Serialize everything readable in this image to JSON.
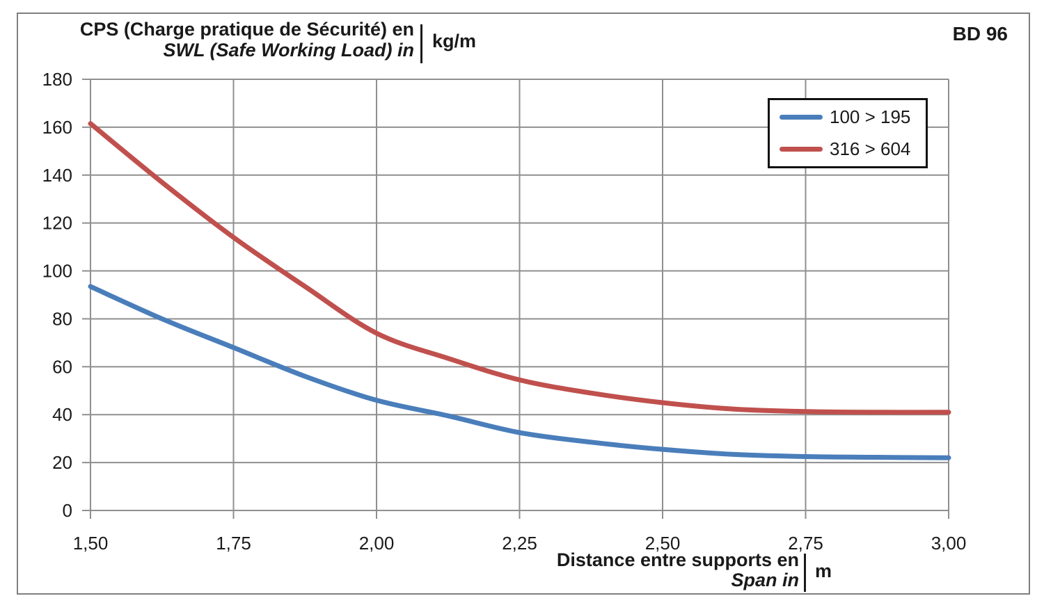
{
  "chart_data": {
    "type": "line",
    "corner_label": "BD 96",
    "ylabel_line1": "CPS (Charge pratique de Sécurité) en",
    "ylabel_line2": "SWL (Safe Working Load) in",
    "ylabel_unit": "kg/m",
    "xlabel_line1": "Distance entre supports en",
    "xlabel_line2": "Span in",
    "xlabel_unit": "m",
    "x_range": [
      1.5,
      3.0
    ],
    "y_range": [
      0,
      180
    ],
    "x_ticks": [
      1.5,
      1.75,
      2.0,
      2.25,
      2.5,
      2.75,
      3.0
    ],
    "x_tick_labels": [
      "1,50",
      "1,75",
      "2,00",
      "2,25",
      "2,50",
      "2,75",
      "3,00"
    ],
    "y_ticks": [
      0,
      20,
      40,
      60,
      80,
      100,
      120,
      140,
      160,
      180
    ],
    "y_tick_labels": [
      "0",
      "20",
      "40",
      "60",
      "80",
      "100",
      "120",
      "140",
      "160",
      "180"
    ],
    "grid": true,
    "grid_color": "#8f8f8f",
    "text_color": "#1a1a1a",
    "legend_position": "top-right",
    "x": [
      1.5,
      1.625,
      1.75,
      1.875,
      2.0,
      2.125,
      2.25,
      2.375,
      2.5,
      2.625,
      2.75,
      2.875,
      3.0
    ],
    "series": [
      {
        "name": "100 > 195",
        "color": "#4a7ebb",
        "values": [
          93.5,
          80,
          68,
          56,
          46,
          39.5,
          32.5,
          28.5,
          25.5,
          23.4,
          22.5,
          22.2,
          22
        ]
      },
      {
        "name": "316 > 604",
        "color": "#c0504d",
        "values": [
          161.5,
          137,
          114,
          93.5,
          74,
          63.5,
          54.5,
          49,
          45,
          42.3,
          41.3,
          41,
          41
        ]
      }
    ]
  }
}
